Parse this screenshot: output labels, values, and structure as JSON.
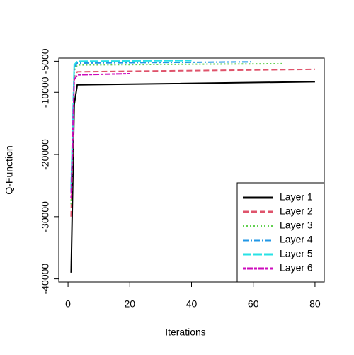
{
  "chart_data": {
    "type": "line",
    "x_label": "Iterations",
    "y_label": "Q-Function",
    "xlim": [
      -3,
      83
    ],
    "xticks": [
      0,
      20,
      40,
      60,
      80
    ],
    "ylim": [
      -40500,
      -4500
    ],
    "yticks": [
      -40000,
      -30000,
      -20000,
      -10000,
      -5000
    ],
    "legend": "bottomright",
    "series": [
      {
        "name": "Layer 1",
        "color": "#000000",
        "dash": "",
        "x": [
          1,
          2,
          3,
          80
        ],
        "values": [
          -39000,
          -12000,
          -8800,
          -8300
        ]
      },
      {
        "name": "Layer 2",
        "color": "#DF536B",
        "dash": "8,4",
        "x": [
          1,
          2,
          3,
          80
        ],
        "values": [
          -30000,
          -7500,
          -6700,
          -6300
        ]
      },
      {
        "name": "Layer 3",
        "color": "#61D04F",
        "dash": "2,3",
        "x": [
          1,
          2,
          3,
          70
        ],
        "values": [
          -28000,
          -6500,
          -5600,
          -5400
        ]
      },
      {
        "name": "Layer 4",
        "color": "#2297E6",
        "dash": "8,3,2,3",
        "x": [
          1,
          2,
          3,
          60
        ],
        "values": [
          -26000,
          -6000,
          -5300,
          -5100
        ]
      },
      {
        "name": "Layer 5",
        "color": "#28E2E5",
        "dash": "12,3",
        "x": [
          1,
          2,
          3,
          40
        ],
        "values": [
          -25000,
          -5600,
          -5000,
          -4900
        ]
      },
      {
        "name": "Layer 6",
        "color": "#CD0BBC",
        "dash": "4,2,8,2",
        "x": [
          1,
          2,
          3,
          20
        ],
        "values": [
          -27000,
          -8000,
          -7200,
          -7000
        ]
      }
    ]
  }
}
